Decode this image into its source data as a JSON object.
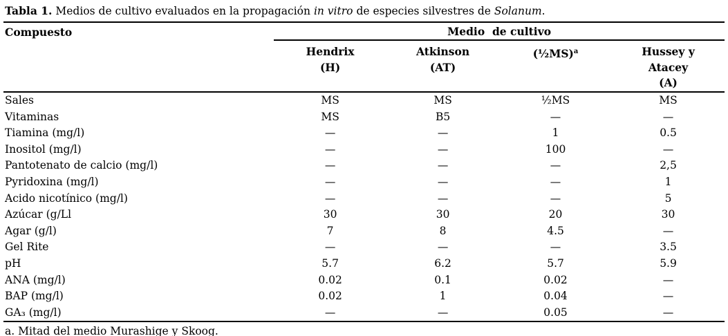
{
  "title": {
    "prefix": "Tabla 1.",
    "segment_1": " Medios de cultivo evaluados en la propagación ",
    "italic_1": "in vitro",
    "segment_2": " de especies silvestres de ",
    "italic_2": "Solanum",
    "segment_3": "."
  },
  "table": {
    "compound_header": "Compuesto",
    "group_header": "Medio  de cultivo",
    "columns": [
      {
        "lines": [
          "Hendrix",
          "(H)"
        ]
      },
      {
        "lines": [
          "Atkinson",
          "(AT)"
        ]
      },
      {
        "lines": [
          "(½MS)"
        ],
        "superscript": "a"
      },
      {
        "lines": [
          "Hussey y",
          "Atacey",
          "(A)"
        ]
      }
    ],
    "rows": [
      {
        "label": "Sales",
        "values": [
          "MS",
          "MS",
          "½MS",
          "MS"
        ]
      },
      {
        "label": "Vitaminas",
        "values": [
          "MS",
          "B5",
          "—",
          "—"
        ]
      },
      {
        "label": "Tiamina (mg/l)",
        "values": [
          "—",
          "—",
          "1",
          "0.5"
        ]
      },
      {
        "label": "Inositol (mg/l)",
        "values": [
          "—",
          "—",
          "100",
          "—"
        ]
      },
      {
        "label": "Pantotenato de calcio (mg/l)",
        "values": [
          "—",
          "—",
          "—",
          "2,5"
        ]
      },
      {
        "label": "Pyridoxina (mg/l)",
        "values": [
          "—",
          "—",
          "—",
          "1"
        ]
      },
      {
        "label": "Acido nicotínico (mg/l)",
        "values": [
          "—",
          "—",
          "—",
          "5"
        ]
      },
      {
        "label": "Azúcar (g/Ll",
        "values": [
          "30",
          "30",
          "20",
          "30"
        ]
      },
      {
        "label": "Agar (g/l)",
        "values": [
          "7",
          "8",
          "4.5",
          "—"
        ]
      },
      {
        "label": "Gel Rite",
        "values": [
          "—",
          "—",
          "—",
          "3.5"
        ]
      },
      {
        "label": "pH",
        "values": [
          "5.7",
          "6.2",
          "5.7",
          "5.9"
        ]
      },
      {
        "label": "ANA (mg/l)",
        "values": [
          "0.02",
          "0.1",
          "0.02",
          "—"
        ]
      },
      {
        "label": "BAP (mg/l)",
        "values": [
          "0.02",
          "1",
          "0.04",
          "—"
        ]
      },
      {
        "label": "GA₃ (mg/l)",
        "values": [
          "—",
          "—",
          "0.05",
          "—"
        ]
      }
    ]
  },
  "footnote": "a. Mitad del medio Murashige y Skoog.",
  "colors": {
    "text": "#000000",
    "background": "#ffffff",
    "rule": "#000000"
  }
}
